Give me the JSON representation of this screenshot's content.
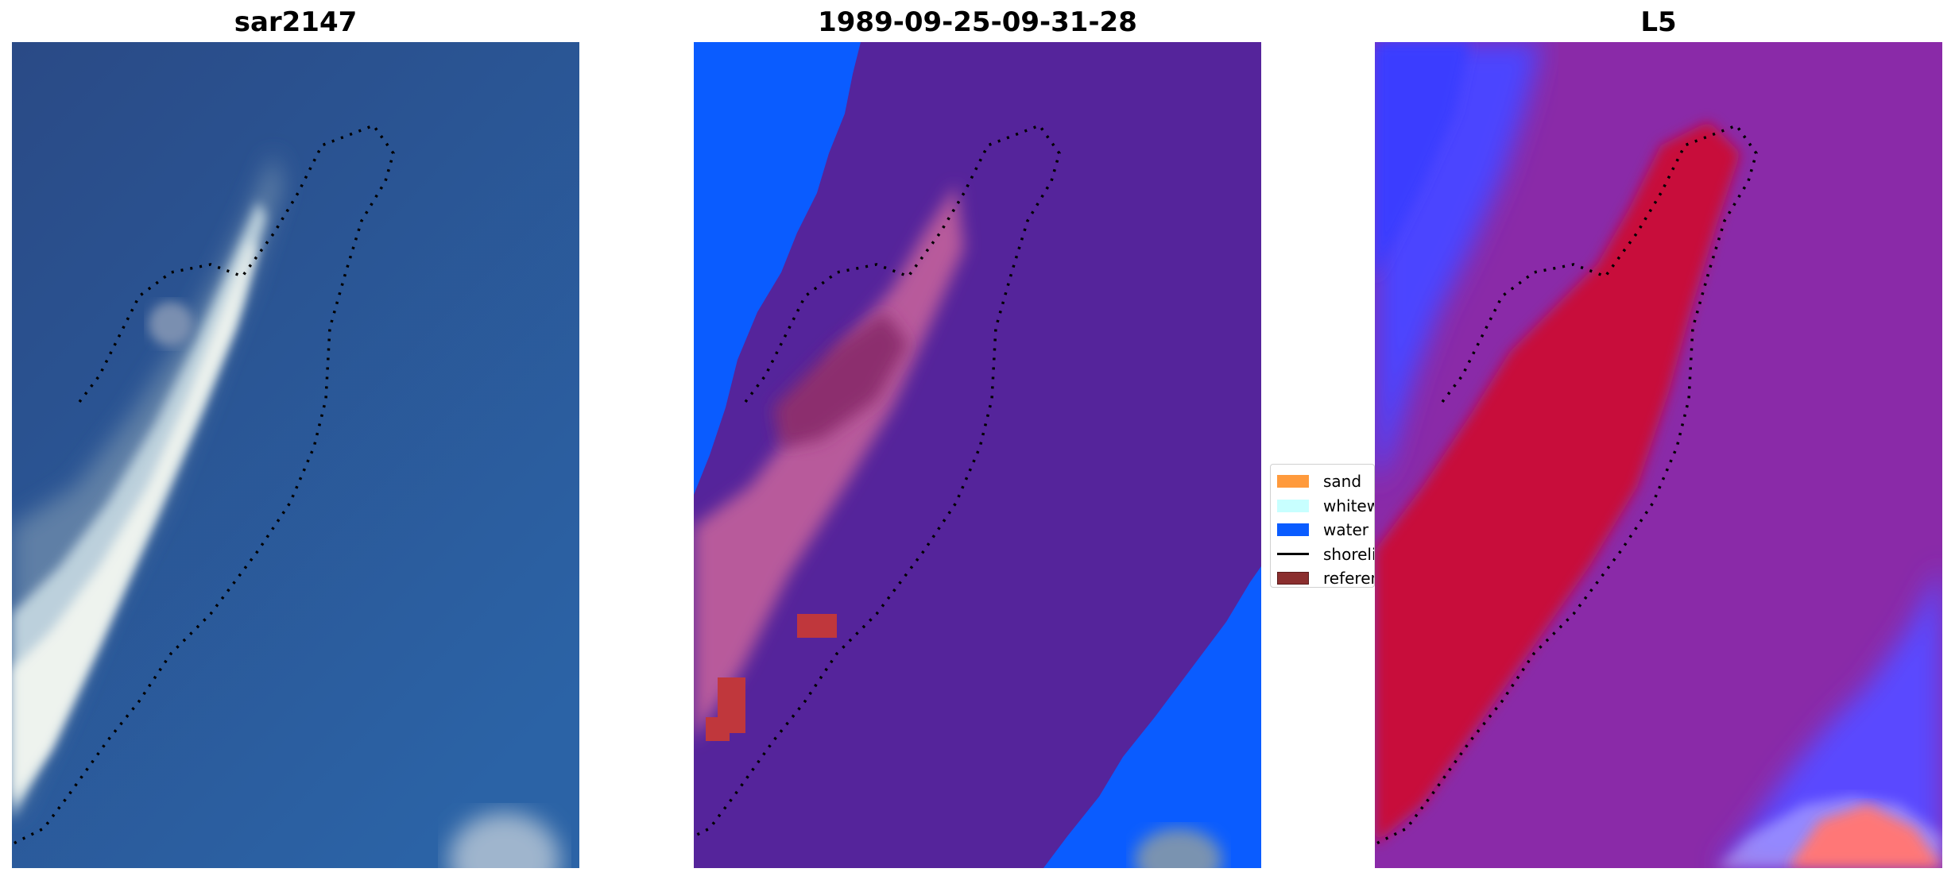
{
  "panels": [
    {
      "title": "sar2147"
    },
    {
      "title": "1989-09-25-09-31-28"
    },
    {
      "title": "L5"
    }
  ],
  "legend": {
    "items": [
      {
        "label": "sand",
        "color": "#ff9a3c",
        "kind": "patch"
      },
      {
        "label": "whitewater",
        "color": "#c8ffff",
        "kind": "patch"
      },
      {
        "label": "water",
        "color": "#0a5cff",
        "kind": "patch"
      },
      {
        "label": "shoreline",
        "color": "#000000",
        "kind": "line"
      },
      {
        "label": "reference shoreline",
        "color": "#8b2e2e",
        "kind": "patch"
      }
    ]
  },
  "colors": {
    "rgb_water": "#27508f",
    "class_water": "#0a5cff",
    "class_other": "#55249b",
    "l5_background": "#8a2aa8",
    "l5_high": "#c8103a",
    "l5_low": "#4b45ff"
  }
}
